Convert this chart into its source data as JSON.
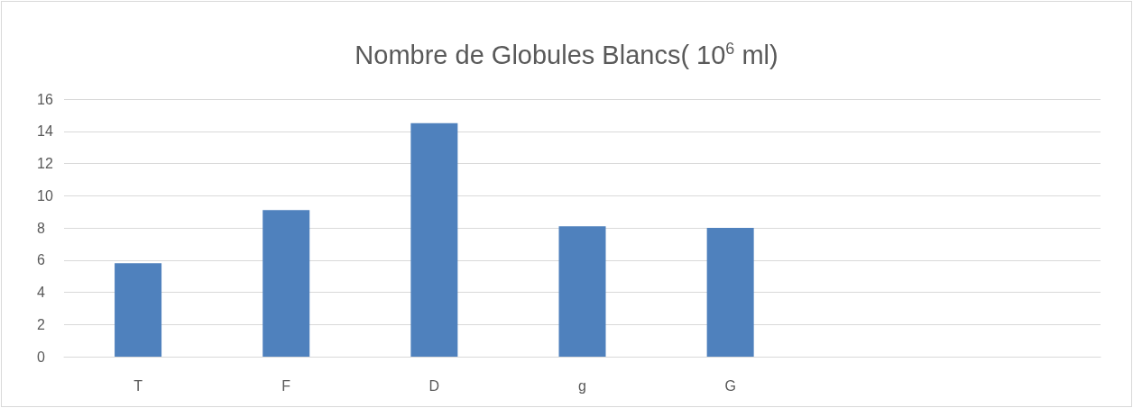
{
  "chart_data": {
    "type": "bar",
    "title": "Nombre de Globules Blancs( 10$^{6}$ ml)",
    "categories": [
      "T",
      "F",
      "D",
      "g",
      "G",
      null,
      null
    ],
    "values": [
      5.8,
      9.1,
      14.5,
      8.1,
      8.0,
      null,
      null
    ],
    "color": "#4f81bd",
    "ylim": [
      0,
      16
    ],
    "yticks": [
      0,
      2,
      4,
      6,
      8,
      10,
      12,
      14,
      16
    ],
    "grid": "y"
  }
}
